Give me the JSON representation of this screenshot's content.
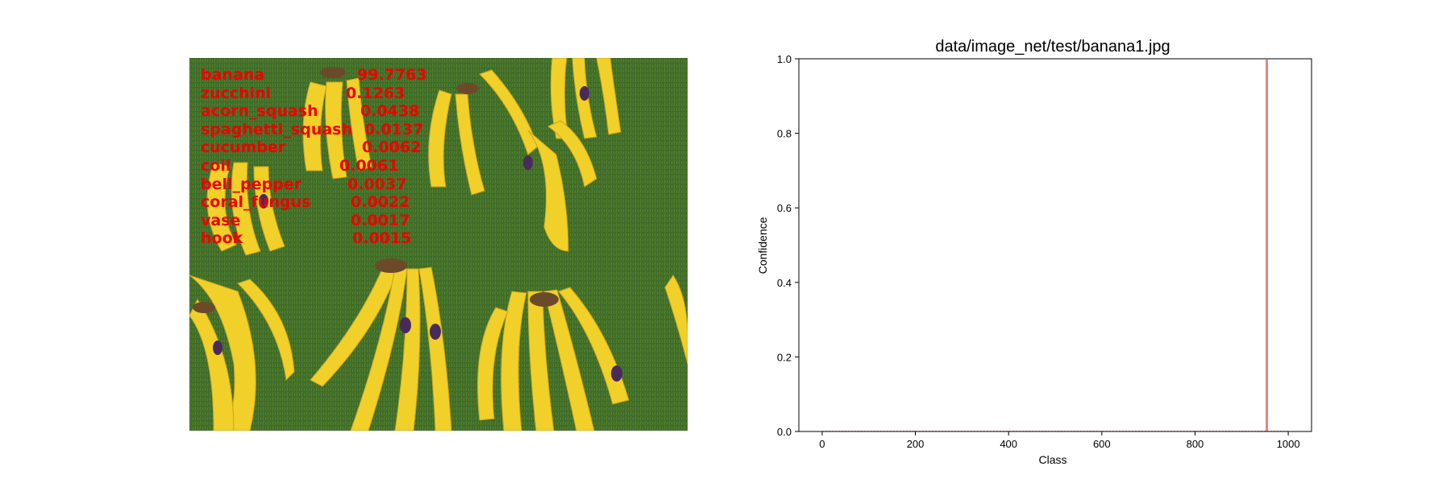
{
  "predictions": [
    {
      "label": "banana",
      "value": "99.7763"
    },
    {
      "label": "zucchini",
      "value": "0.1263"
    },
    {
      "label": "acorn_squash",
      "value": "0.0438"
    },
    {
      "label": "spaghetti_squash",
      "value": "0.0137"
    },
    {
      "label": "cucumber",
      "value": "0.0062"
    },
    {
      "label": "coil",
      "value": "0.0061"
    },
    {
      "label": "bell_pepper",
      "value": "0.0037"
    },
    {
      "label": "coral_fungus",
      "value": "0.0022"
    },
    {
      "label": "vase",
      "value": "0.0017"
    },
    {
      "label": "hook",
      "value": "0.0015"
    }
  ],
  "colors": {
    "prediction_text": "#ee0000",
    "bar": "#e88080",
    "grass": "#3f6b28",
    "banana": "#f2d02a"
  },
  "chart_data": {
    "type": "bar",
    "title": "data/image_net/test/banana1.jpg",
    "xlabel": "Class",
    "ylabel": "Confidence",
    "xlim": [
      -50,
      1050
    ],
    "ylim": [
      0,
      1.0
    ],
    "xticks": [
      0,
      200,
      400,
      600,
      800,
      1000
    ],
    "yticks": [
      "0.0",
      "0.2",
      "0.4",
      "0.6",
      "0.8",
      "1.0"
    ],
    "bars": [
      {
        "class": 954,
        "value": 0.997763
      },
      {
        "class": 939,
        "value": 0.001263
      },
      {
        "class": 941,
        "value": 0.000438
      },
      {
        "class": 940,
        "value": 0.000137
      }
    ],
    "grid": false
  }
}
